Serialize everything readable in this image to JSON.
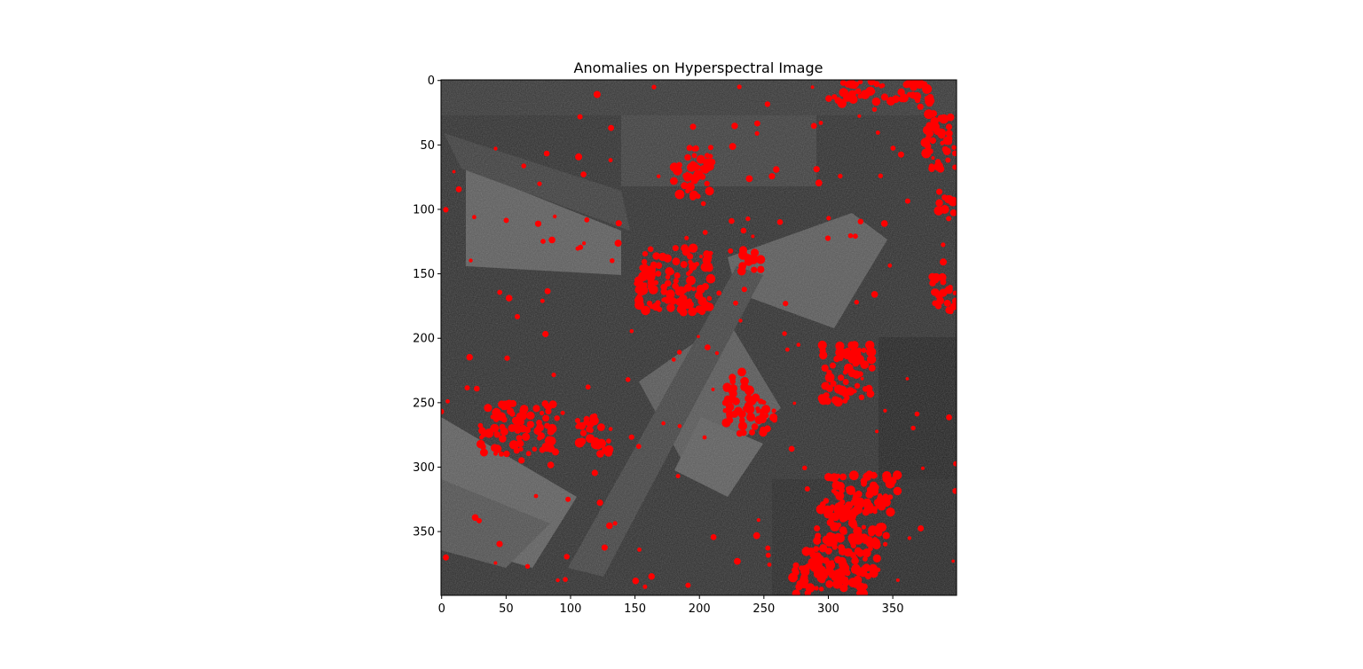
{
  "figure": {
    "title": "Anomalies on Hyperspectral Image"
  },
  "chart_data": {
    "type": "heatmap",
    "title": "Anomalies on Hyperspectral Image",
    "xlabel": "",
    "ylabel": "",
    "xlim": [
      0,
      399
    ],
    "ylim": [
      399,
      0
    ],
    "x_ticks": [
      0,
      50,
      100,
      150,
      200,
      250,
      300,
      350
    ],
    "y_ticks": [
      0,
      50,
      100,
      150,
      200,
      250,
      300,
      350
    ],
    "background": "grayscale hyperspectral band image (400 x 400 pixels)",
    "overlay_color": "#ff0000",
    "anomaly_regions": [
      {
        "x": [
          150,
          210
        ],
        "y": [
          130,
          180
        ],
        "label": "large cluster"
      },
      {
        "x": [
          180,
          210
        ],
        "y": [
          52,
          92
        ]
      },
      {
        "x": [
          295,
          335
        ],
        "y": [
          205,
          250
        ]
      },
      {
        "x": [
          300,
          355
        ],
        "y": [
          305,
          335
        ]
      },
      {
        "x": [
          290,
          345
        ],
        "y": [
          325,
          360
        ]
      },
      {
        "x": [
          280,
          340
        ],
        "y": [
          355,
          390
        ]
      },
      {
        "x": [
          270,
          330
        ],
        "y": [
          375,
          399
        ]
      },
      {
        "x": [
          30,
          90
        ],
        "y": [
          250,
          290
        ]
      },
      {
        "x": [
          220,
          260
        ],
        "y": [
          245,
          275
        ]
      },
      {
        "x": [
          105,
          130
        ],
        "y": [
          260,
          290
        ]
      },
      {
        "x": [
          300,
          380
        ],
        "y": [
          0,
          18
        ]
      },
      {
        "x": [
          375,
          399
        ],
        "y": [
          25,
          70
        ]
      },
      {
        "x": [
          385,
          399
        ],
        "y": [
          85,
          110
        ]
      },
      {
        "x": [
          380,
          399
        ],
        "y": [
          150,
          180
        ]
      },
      {
        "x": [
          220,
          240
        ],
        "y": [
          225,
          245
        ]
      },
      {
        "x": [
          230,
          250
        ],
        "y": [
          130,
          150
        ]
      }
    ]
  },
  "colors": {
    "anomaly": "#ff0000",
    "axes": "#000000",
    "background": "#ffffff"
  }
}
